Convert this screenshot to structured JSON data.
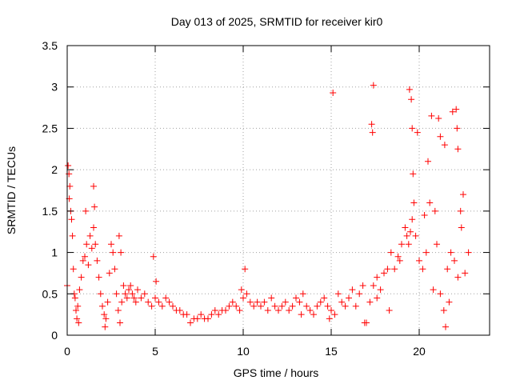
{
  "chart_data": {
    "type": "scatter",
    "title": "Day 013 of 2025, SRMTID for receiver kir0",
    "xlabel": "GPS time / hours",
    "ylabel": "SRMTID / TECUs",
    "xlim": [
      0,
      24
    ],
    "ylim": [
      0,
      3.5
    ],
    "x_ticks": [
      0,
      5,
      10,
      15,
      20
    ],
    "y_ticks": [
      0,
      0.5,
      1,
      1.5,
      2,
      2.5,
      3,
      3.5
    ],
    "x_tick_labels": [
      "0",
      "5",
      "10",
      "15",
      "20"
    ],
    "y_tick_labels": [
      "0",
      "0.5",
      "1",
      "1.5",
      "2",
      "2.5",
      "3",
      "3.5"
    ],
    "grid": true,
    "marker": "+",
    "series_color": "#ff0000",
    "series": [
      {
        "name": "SRMTID",
        "x": [
          0.0,
          0.1,
          0.15,
          0.2,
          0.25,
          0.3,
          0.35,
          0.4,
          0.5,
          0.55,
          0.6,
          0.7,
          0.8,
          0.9,
          1.0,
          1.1,
          1.2,
          1.3,
          1.4,
          1.5,
          1.6,
          1.7,
          1.8,
          1.9,
          2.0,
          2.1,
          2.2,
          2.3,
          2.4,
          2.5,
          2.6,
          2.7,
          2.8,
          2.9,
          3.0,
          3.1,
          3.2,
          3.3,
          3.4,
          3.5,
          3.6,
          3.7,
          3.8,
          3.9,
          4.0,
          4.2,
          4.4,
          4.6,
          4.8,
          5.0,
          5.2,
          5.4,
          5.6,
          5.8,
          6.0,
          6.2,
          6.4,
          6.6,
          6.8,
          7.0,
          7.2,
          7.4,
          7.6,
          7.8,
          8.0,
          8.2,
          8.4,
          8.6,
          8.8,
          9.0,
          9.2,
          9.4,
          9.6,
          9.8,
          10.0,
          10.2,
          10.4,
          10.6,
          10.8,
          11.0,
          11.2,
          11.4,
          11.6,
          11.8,
          12.0,
          12.2,
          12.4,
          12.6,
          12.8,
          13.0,
          13.2,
          13.4,
          13.6,
          13.8,
          14.0,
          14.2,
          14.4,
          14.6,
          14.8,
          15.0,
          15.2,
          15.4,
          15.6,
          15.8,
          16.0,
          16.2,
          16.4,
          16.6,
          16.8,
          17.0,
          17.2,
          17.4,
          17.6,
          17.8,
          18.0,
          18.2,
          18.4,
          18.6,
          18.8,
          19.0,
          19.2,
          19.4,
          19.5,
          19.6,
          19.7,
          19.8,
          20.0,
          20.2,
          20.4,
          20.6,
          20.8,
          21.0,
          21.2,
          21.4,
          21.6,
          21.8,
          22.0,
          22.2,
          22.4,
          22.6,
          22.8,
          0.05,
          0.12,
          0.45,
          0.65,
          1.05,
          1.5,
          1.55,
          2.15,
          2.95,
          3.05,
          4.9,
          5.05,
          9.9,
          10.1,
          13.3,
          14.9,
          15.1,
          17.3,
          17.35,
          17.4,
          19.45,
          19.55,
          19.6,
          19.65,
          19.9,
          20.5,
          20.7,
          21.1,
          21.2,
          21.45,
          21.5,
          21.9,
          22.1,
          22.15,
          22.2,
          16.9,
          17.6,
          18.3,
          18.9,
          19.3,
          20.3,
          20.9,
          21.7,
          22.35,
          22.5
        ],
        "y": [
          0.6,
          1.95,
          1.8,
          1.5,
          1.4,
          1.2,
          0.8,
          0.5,
          0.3,
          0.2,
          0.35,
          0.55,
          0.7,
          0.9,
          0.95,
          1.1,
          0.85,
          1.2,
          1.05,
          1.8,
          1.1,
          0.9,
          0.7,
          0.5,
          0.35,
          0.25,
          0.2,
          0.4,
          0.75,
          1.1,
          1.0,
          0.8,
          0.5,
          0.3,
          0.15,
          0.4,
          0.6,
          0.5,
          0.45,
          0.55,
          0.6,
          0.5,
          0.45,
          0.4,
          0.55,
          0.45,
          0.5,
          0.4,
          0.35,
          0.45,
          0.4,
          0.35,
          0.45,
          0.4,
          0.35,
          0.3,
          0.3,
          0.25,
          0.25,
          0.15,
          0.2,
          0.2,
          0.25,
          0.2,
          0.2,
          0.25,
          0.3,
          0.25,
          0.3,
          0.3,
          0.35,
          0.4,
          0.35,
          0.3,
          0.45,
          0.5,
          0.4,
          0.35,
          0.4,
          0.35,
          0.4,
          0.3,
          0.45,
          0.35,
          0.3,
          0.35,
          0.4,
          0.3,
          0.35,
          0.45,
          0.4,
          0.5,
          0.35,
          0.3,
          0.25,
          0.35,
          0.4,
          0.45,
          0.35,
          0.3,
          0.25,
          0.5,
          0.4,
          0.35,
          0.45,
          0.55,
          0.35,
          0.5,
          0.6,
          0.15,
          0.4,
          0.6,
          0.7,
          0.55,
          0.75,
          0.8,
          1.0,
          0.8,
          0.95,
          1.1,
          1.3,
          1.1,
          1.25,
          1.4,
          1.6,
          1.2,
          0.9,
          0.8,
          1.0,
          1.6,
          0.55,
          1.1,
          0.5,
          0.3,
          0.8,
          1.0,
          0.9,
          0.7,
          1.3,
          0.75,
          1.0,
          2.05,
          1.65,
          0.45,
          0.15,
          1.5,
          1.3,
          1.55,
          0.1,
          1.2,
          1.0,
          0.95,
          0.65,
          0.55,
          0.8,
          0.25,
          0.2,
          2.93,
          2.55,
          2.45,
          3.02,
          2.97,
          2.85,
          2.5,
          1.95,
          2.45,
          2.1,
          2.65,
          2.62,
          2.4,
          2.3,
          0.1,
          2.7,
          2.73,
          2.5,
          2.25,
          0.15,
          0.45,
          0.3,
          0.9,
          1.2,
          1.45,
          1.5,
          0.4,
          1.5,
          1.7
        ]
      }
    ]
  }
}
